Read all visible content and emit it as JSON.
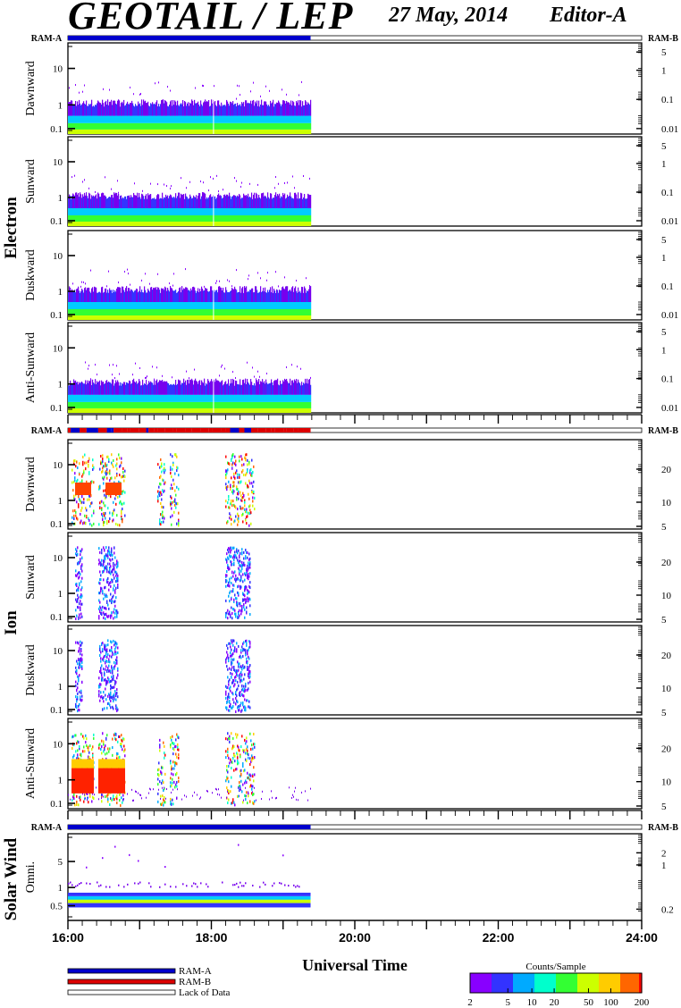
{
  "header": {
    "title": "GEOTAIL / LEP",
    "date": "27 May, 2014",
    "editor": "Editor-A"
  },
  "chart_data": {
    "type": "heatmap",
    "xlabel": "Universal Time",
    "x_ticks": [
      "16:00",
      "18:00",
      "20:00",
      "22:00",
      "24:00"
    ],
    "x_range": [
      "16:00",
      "24:00"
    ],
    "data_end": "19:23",
    "ram_labels": {
      "left": "RAM-A",
      "right": "RAM-B"
    },
    "groups": [
      {
        "name": "Electron",
        "panels": [
          {
            "label": "Dawnward",
            "left_ticks": [
              "10",
              "1",
              "0.1"
            ],
            "right_ticks": [
              "5",
              "1",
              "0.1",
              "0.01"
            ]
          },
          {
            "label": "Sunward",
            "left_ticks": [
              "10",
              "1",
              "0.1"
            ],
            "right_ticks": [
              "5",
              "1",
              "0.1",
              "0.01"
            ]
          },
          {
            "label": "Duskward",
            "left_ticks": [
              "10",
              "1",
              "0.1"
            ],
            "right_ticks": [
              "5",
              "1",
              "0.1",
              "0.01"
            ]
          },
          {
            "label": "Anti-Sunward",
            "left_ticks": [
              "10",
              "1",
              "0.1"
            ],
            "right_ticks": [
              "5",
              "1",
              "0.1",
              "0.01"
            ]
          }
        ]
      },
      {
        "name": "Ion",
        "panels": [
          {
            "label": "Dawnward",
            "left_ticks": [
              "10",
              "1",
              "0.1"
            ],
            "right_ticks": [
              "20",
              "10",
              "5"
            ]
          },
          {
            "label": "Sunward",
            "left_ticks": [
              "10",
              "1",
              "0.1"
            ],
            "right_ticks": [
              "20",
              "10",
              "5"
            ]
          },
          {
            "label": "Duskward",
            "left_ticks": [
              "10",
              "1",
              "0.1"
            ],
            "right_ticks": [
              "20",
              "10",
              "5"
            ]
          },
          {
            "label": "Anti-Sunward",
            "left_ticks": [
              "10",
              "1",
              "0.1"
            ],
            "right_ticks": [
              "20",
              "10",
              "5"
            ]
          }
        ]
      },
      {
        "name": "Solar Wind",
        "panels": [
          {
            "label": "Omni.",
            "left_ticks": [
              "5",
              "1",
              "0.5"
            ],
            "right_ticks": [
              "2",
              "1",
              "0.2"
            ]
          }
        ]
      }
    ],
    "legend": {
      "items": [
        "RAM-A",
        "RAM-B",
        "Lack of Data"
      ],
      "colors": {
        "ram_a": "#0000cc",
        "ram_b": "#dd0000",
        "lack": "#ffffff"
      }
    },
    "colorbar": {
      "title": "Counts/Sample",
      "ticks": [
        "2",
        "5",
        "10",
        "20",
        "50",
        "100",
        "200"
      ],
      "colors": [
        "#8800ff",
        "#3333ff",
        "#00aaff",
        "#00ffcc",
        "#33ff33",
        "#ccff00",
        "#ffcc00",
        "#ff6600",
        "#ff0000"
      ]
    }
  }
}
